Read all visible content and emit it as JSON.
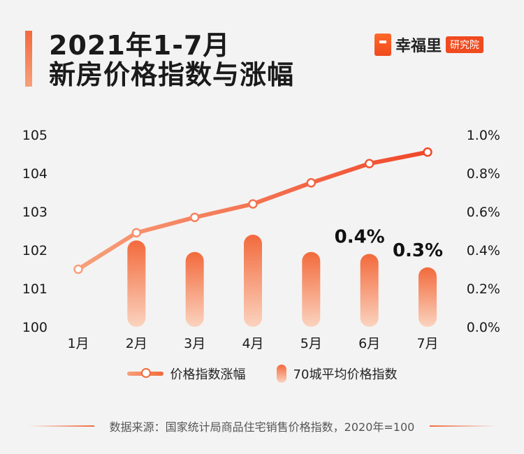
{
  "header": {
    "title_line1": "2021年1-7月",
    "title_line2": "新房价格指数与涨幅"
  },
  "brand": {
    "name": "幸福里",
    "tag": "研究院"
  },
  "legend": {
    "line_label": "价格指数涨幅",
    "bar_label": "70城平均价格指数"
  },
  "footer": {
    "source": "数据来源：国家统计局商品住宅销售价格指数，2020年=100"
  },
  "colors": {
    "accent": "#f26a3c",
    "accent_light": "#f7a07a",
    "bar_top": "#f26a3c",
    "bar_bottom": "#fbd3bf"
  },
  "chart_data": {
    "type": "bar+line",
    "categories": [
      "1月",
      "2月",
      "3月",
      "4月",
      "5月",
      "6月",
      "7月"
    ],
    "series": [
      {
        "name": "70城平均价格指数",
        "type": "bar",
        "axis": "right",
        "values": [
          0.0,
          0.45,
          0.39,
          0.48,
          0.39,
          0.38,
          0.31
        ]
      },
      {
        "name": "价格指数涨幅",
        "type": "line",
        "axis": "left",
        "values": [
          101.5,
          102.45,
          102.85,
          103.2,
          103.75,
          104.25,
          104.55
        ]
      }
    ],
    "annotations": [
      {
        "category": "6月",
        "text": "0.4%"
      },
      {
        "category": "7月",
        "text": "0.3%"
      }
    ],
    "y_left": {
      "min": 100,
      "max": 105,
      "ticks": [
        "100",
        "101",
        "102",
        "103",
        "104",
        "105"
      ]
    },
    "y_right": {
      "min": 0,
      "max": 1.0,
      "ticks": [
        "0.0%",
        "0.2%",
        "0.4%",
        "0.6%",
        "0.8%",
        "1.0%"
      ]
    },
    "legend_position": "bottom",
    "grid": false
  }
}
